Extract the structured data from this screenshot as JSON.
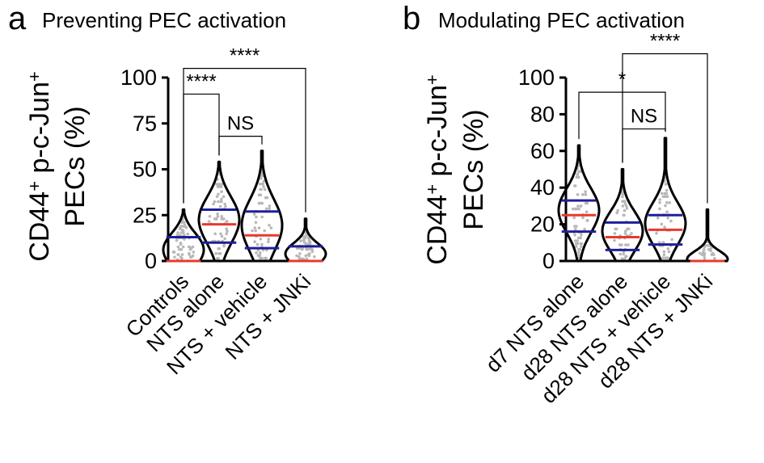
{
  "colors": {
    "violin_outline": "#000000",
    "median": "#e8392f",
    "quartile": "#1f1f9c",
    "points": "#b8b8b8"
  },
  "chart_data": [
    {
      "panel": "a",
      "title": "Preventing PEC activation",
      "type": "violin",
      "ylabel_line1": "CD44",
      "ylabel_sup1": "+",
      "ylabel_mid": " p-c-Jun",
      "ylabel_sup2": "+",
      "ylabel_line2": "PECs (%)",
      "ylim": [
        0,
        100
      ],
      "yticks": [
        0,
        25,
        50,
        75,
        100
      ],
      "categories": [
        "Controls",
        "NTS alone",
        "NTS + vehicle",
        "NTS + JNKi"
      ],
      "groups": [
        {
          "max": 28,
          "q1": 0,
          "median": 0,
          "q3": 13
        },
        {
          "max": 54,
          "q1": 10,
          "median": 20,
          "q3": 28
        },
        {
          "max": 60,
          "q1": 7,
          "median": 14,
          "q3": 27
        },
        {
          "max": 23,
          "q1": 0,
          "median": 0,
          "q3": 8
        }
      ],
      "comparisons": [
        {
          "label": "****",
          "from": 0,
          "to": 3,
          "y": 105
        },
        {
          "label": "****",
          "from": 0,
          "to": 1,
          "y": 91
        },
        {
          "label": "NS",
          "from": 1,
          "to": 2,
          "y": 68
        }
      ]
    },
    {
      "panel": "b",
      "title": "Modulating PEC activation",
      "type": "violin",
      "ylabel_line1": "CD44",
      "ylabel_sup1": "+",
      "ylabel_mid": " p-c-Jun",
      "ylabel_sup2": "+",
      "ylabel_line2": "PECs (%)",
      "ylim": [
        0,
        100
      ],
      "yticks": [
        0,
        20,
        40,
        60,
        80,
        100
      ],
      "categories": [
        "d7 NTS alone",
        "d28 NTS alone",
        "d28 NTS + vehicle",
        "d28 NTS + JNKi"
      ],
      "groups": [
        {
          "max": 63,
          "q1": 16,
          "median": 25,
          "q3": 33
        },
        {
          "max": 50,
          "q1": 6,
          "median": 13,
          "q3": 21
        },
        {
          "max": 67,
          "q1": 9,
          "median": 17,
          "q3": 25
        },
        {
          "max": 28,
          "q1": 0,
          "median": 0,
          "q3": 0
        }
      ],
      "comparisons": [
        {
          "label": "****",
          "from": 1,
          "to": 3,
          "y": 113
        },
        {
          "label": "*",
          "from": 0,
          "to": 2,
          "y": 92
        },
        {
          "label": "NS",
          "from": 1,
          "to": 2,
          "y": 72
        }
      ]
    }
  ]
}
